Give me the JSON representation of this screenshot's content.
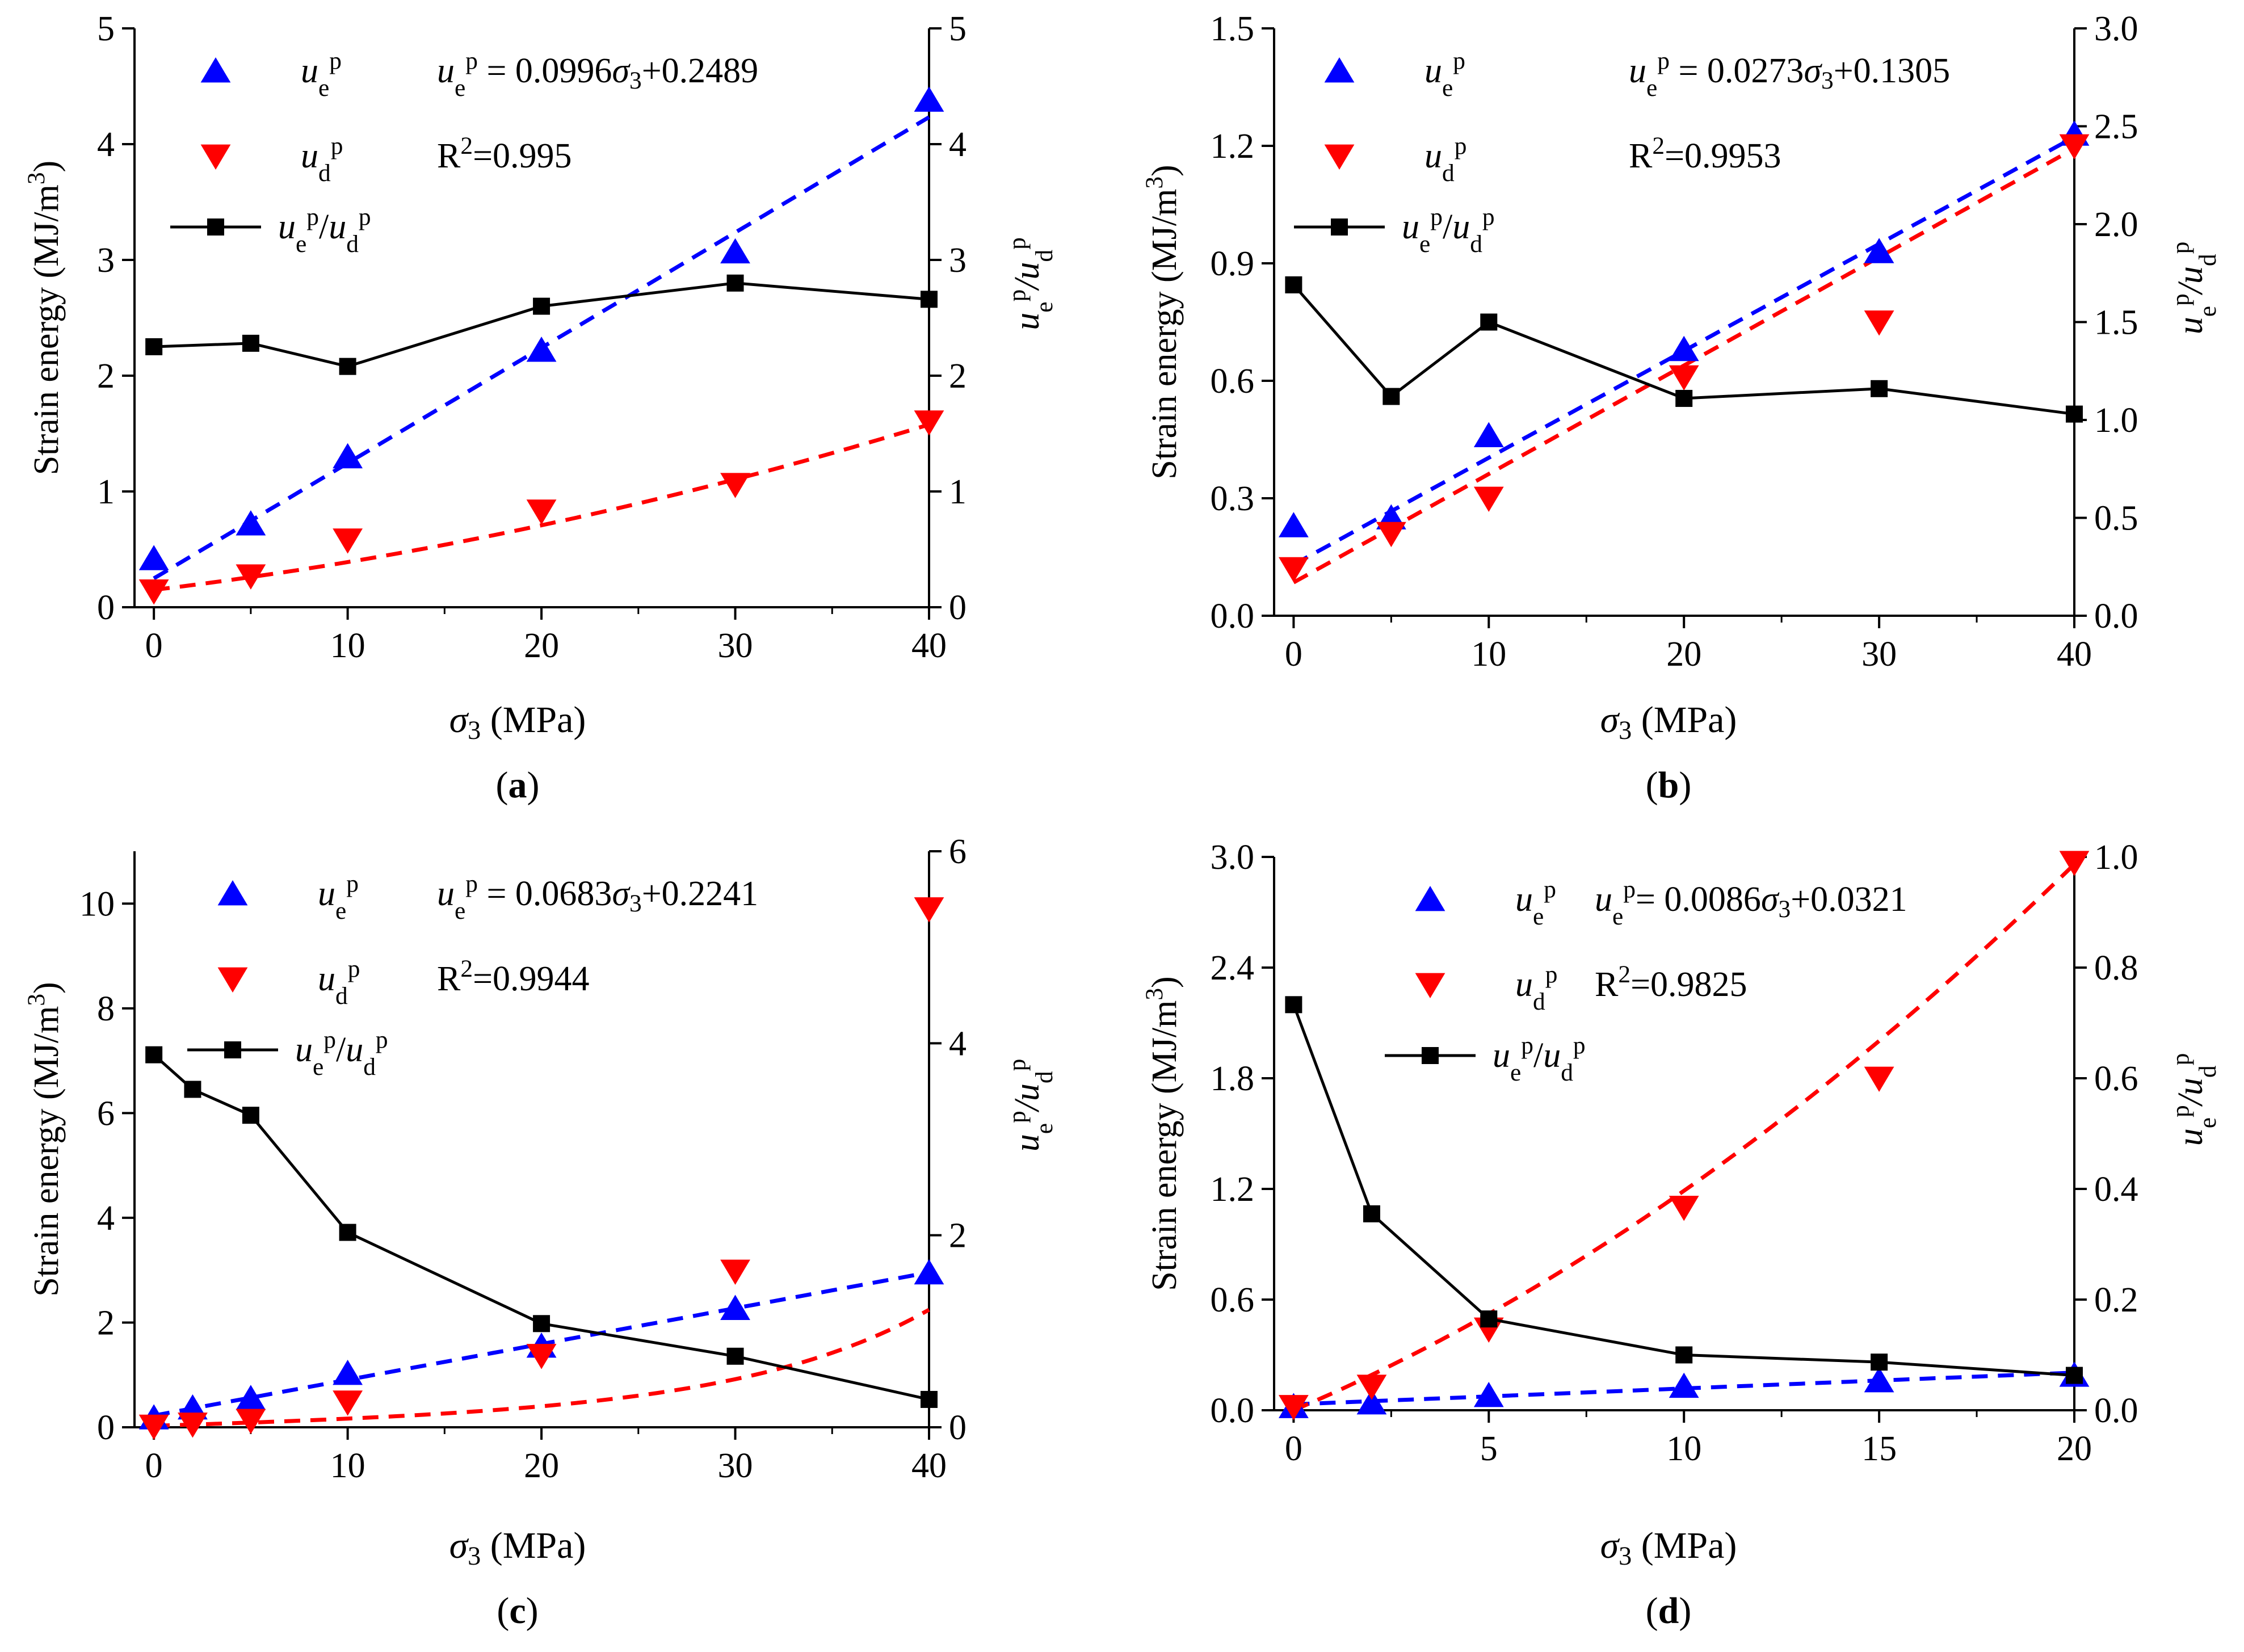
{
  "figure_caption_style": "(letter)",
  "chart_data": [
    {
      "panel": "a",
      "type": "line",
      "xlabel": "σ3 (MPa)",
      "ylabel": "Strain energy (MJ/m3)",
      "y2label": "ue p/ud p",
      "xlim": [
        -1,
        40
      ],
      "xticks": [
        0,
        10,
        20,
        30,
        40
      ],
      "ylim": [
        0,
        5
      ],
      "yticks": [
        "0",
        "1",
        "2",
        "3",
        "4",
        "5"
      ],
      "y2lim": [
        0,
        5
      ],
      "y2ticks": [
        "0",
        "1",
        "2",
        "3",
        "4",
        "5"
      ],
      "legend": [
        "ue p",
        "ud p",
        "ue p/ud p"
      ],
      "equation": "ue p = 0.0996σ3+0.2489",
      "r2": "R2=0.995",
      "series": [
        {
          "name": "ue p",
          "axis": "left",
          "marker": "triangle-up",
          "color": "#0000ff",
          "x": [
            0,
            5,
            10,
            20,
            30,
            40
          ],
          "values": [
            0.42,
            0.72,
            1.3,
            2.22,
            3.07,
            4.38
          ]
        },
        {
          "name": "ud p",
          "axis": "left",
          "marker": "triangle-down",
          "color": "#ff0000",
          "x": [
            0,
            5,
            10,
            20,
            30,
            40
          ],
          "values": [
            0.14,
            0.27,
            0.58,
            0.83,
            1.06,
            1.6
          ]
        },
        {
          "name": "ue p/ud p",
          "axis": "right",
          "marker": "square",
          "color": "#000000",
          "x": [
            0,
            5,
            10,
            20,
            30,
            40
          ],
          "values": [
            2.25,
            2.28,
            2.08,
            2.6,
            2.8,
            2.66
          ]
        }
      ],
      "fits": [
        {
          "name": "ue p fit",
          "color": "#0000ff",
          "kind": "linear",
          "a": 0.0996,
          "b": 0.2489,
          "x": [
            0,
            40
          ]
        },
        {
          "name": "ud p fit",
          "color": "#ff0000",
          "kind": "quadratic",
          "c2": 0.00039,
          "c1": 0.0201,
          "c0": 0.15,
          "x": [
            0,
            40
          ]
        }
      ]
    },
    {
      "panel": "b",
      "type": "line",
      "xlabel": "σ3 (MPa)",
      "ylabel": "Strain energy (MJ/m3)",
      "y2label": "ue p/ud p",
      "xlim": [
        -1,
        40
      ],
      "xticks": [
        0,
        10,
        20,
        30,
        40
      ],
      "ylim": [
        0,
        1.5
      ],
      "yticks": [
        "0.0",
        "0.3",
        "0.6",
        "0.9",
        "1.2",
        "1.5"
      ],
      "y2lim": [
        0,
        3
      ],
      "y2ticks": [
        "0.0",
        "0.5",
        "1.0",
        "1.5",
        "2.0",
        "2.5",
        "3.0"
      ],
      "legend": [
        "ue p",
        "ud p",
        "ue p/ud p"
      ],
      "equation": "ue p = 0.0273σ3+0.1305",
      "r2": "R2=0.9953",
      "series": [
        {
          "name": "ue p",
          "axis": "left",
          "marker": "triangle-up",
          "color": "#0000ff",
          "x": [
            0,
            5,
            10,
            20,
            30,
            40
          ],
          "values": [
            0.23,
            0.25,
            0.46,
            0.68,
            0.93,
            1.23
          ]
        },
        {
          "name": "ud p",
          "axis": "left",
          "marker": "triangle-down",
          "color": "#ff0000",
          "x": [
            0,
            5,
            10,
            20,
            30,
            40
          ],
          "values": [
            0.12,
            0.21,
            0.3,
            0.61,
            0.75,
            1.2
          ]
        },
        {
          "name": "ue p/ud p",
          "axis": "right",
          "marker": "square",
          "color": "#000000",
          "x": [
            0,
            5,
            10,
            20,
            30,
            40
          ],
          "values": [
            1.69,
            1.12,
            1.5,
            1.11,
            1.16,
            1.03
          ]
        }
      ],
      "fits": [
        {
          "name": "ue p fit",
          "color": "#0000ff",
          "kind": "linear",
          "a": 0.0273,
          "b": 0.1305,
          "x": [
            0,
            40
          ]
        },
        {
          "name": "ud p fit",
          "color": "#ff0000",
          "kind": "linear",
          "a": 0.0277,
          "b": 0.085,
          "x": [
            0,
            40
          ]
        }
      ]
    },
    {
      "panel": "c",
      "type": "line",
      "xlabel": "σ3 (MPa)",
      "ylabel": "Strain energy (MJ/m3)",
      "y2label": "ue p/ud p",
      "xlim": [
        -1,
        40
      ],
      "xticks": [
        0,
        10,
        20,
        30,
        40
      ],
      "ylim": [
        0,
        11
      ],
      "yticks": [
        "0",
        "2",
        "4",
        "6",
        "8",
        "10"
      ],
      "y2lim": [
        0,
        6
      ],
      "y2ticks": [
        "0",
        "2",
        "4",
        "6"
      ],
      "legend": [
        "ue p",
        "ud p",
        "ue p/ud p"
      ],
      "equation": "ue p = 0.0683σ3+0.2241",
      "r2": "R2=0.9944",
      "series": [
        {
          "name": "ue p",
          "axis": "left",
          "marker": "triangle-up",
          "color": "#0000ff",
          "x": [
            0,
            2,
            5,
            10,
            20,
            30,
            40
          ],
          "values": [
            0.18,
            0.37,
            0.55,
            1.03,
            1.55,
            2.27,
            2.95
          ]
        },
        {
          "name": "ud p",
          "axis": "left",
          "marker": "triangle-down",
          "color": "#ff0000",
          "x": [
            0,
            2,
            5,
            10,
            20,
            30,
            40
          ],
          "values": [
            0.02,
            0.06,
            0.13,
            0.48,
            1.37,
            2.98,
            9.9
          ]
        },
        {
          "name": "ue p/ud p",
          "axis": "right",
          "marker": "square",
          "color": "#000000",
          "x": [
            0,
            2,
            5,
            10,
            20,
            30,
            40
          ],
          "values": [
            3.88,
            3.52,
            3.25,
            2.03,
            1.08,
            0.74,
            0.29
          ]
        }
      ],
      "fits": [
        {
          "name": "ue p fit",
          "color": "#0000ff",
          "kind": "linear",
          "a": 0.0683,
          "b": 0.2241,
          "x": [
            0,
            40
          ]
        },
        {
          "name": "ud p fit",
          "color": "#ff0000",
          "kind": "exponential",
          "A": 0.028,
          "B": 0.34,
          "k": 0.1055,
          "x": [
            0,
            40
          ]
        }
      ]
    },
    {
      "panel": "d",
      "type": "line",
      "xlabel": "σ3 (MPa)",
      "ylabel": "Strain energy (MJ/m3)",
      "y2label": "ue p/ud p",
      "xlim": [
        -0.5,
        20
      ],
      "xticks": [
        0,
        5,
        10,
        15,
        20
      ],
      "ylim": [
        0,
        3
      ],
      "yticks": [
        "0.0",
        "0.6",
        "1.2",
        "1.8",
        "2.4",
        "3.0"
      ],
      "y2lim": [
        0,
        1
      ],
      "y2ticks": [
        "0.0",
        "0.2",
        "0.4",
        "0.6",
        "0.8",
        "1.0"
      ],
      "legend": [
        "ue p",
        "ud p",
        "ue p/ud p"
      ],
      "equation": "ue p= 0.0086σ3+0.0321",
      "r2": "R2=0.9825",
      "series": [
        {
          "name": "ue p",
          "axis": "left",
          "marker": "triangle-up",
          "color": "#0000ff",
          "x": [
            0,
            2,
            5,
            10,
            15,
            20
          ],
          "values": [
            0.02,
            0.04,
            0.08,
            0.13,
            0.16,
            0.19
          ]
        },
        {
          "name": "ud p",
          "axis": "left",
          "marker": "triangle-down",
          "color": "#ff0000",
          "x": [
            0,
            2,
            5,
            10,
            15,
            20
          ],
          "values": [
            0.02,
            0.13,
            0.44,
            1.1,
            1.8,
            2.97
          ]
        },
        {
          "name": "ue p/ud p",
          "axis": "right",
          "marker": "square",
          "color": "#000000",
          "x": [
            0,
            2,
            5,
            10,
            15,
            20
          ],
          "values": [
            0.733,
            0.355,
            0.165,
            0.1,
            0.087,
            0.063
          ]
        }
      ],
      "fits": [
        {
          "name": "ue p fit",
          "color": "#0000ff",
          "kind": "linear",
          "a": 0.0086,
          "b": 0.0321,
          "x": [
            0,
            20
          ]
        },
        {
          "name": "ud p fit",
          "color": "#ff0000",
          "kind": "quadratic",
          "c2": 0.0029,
          "c1": 0.09,
          "c0": 0.0,
          "x": [
            0,
            20
          ]
        }
      ]
    }
  ]
}
